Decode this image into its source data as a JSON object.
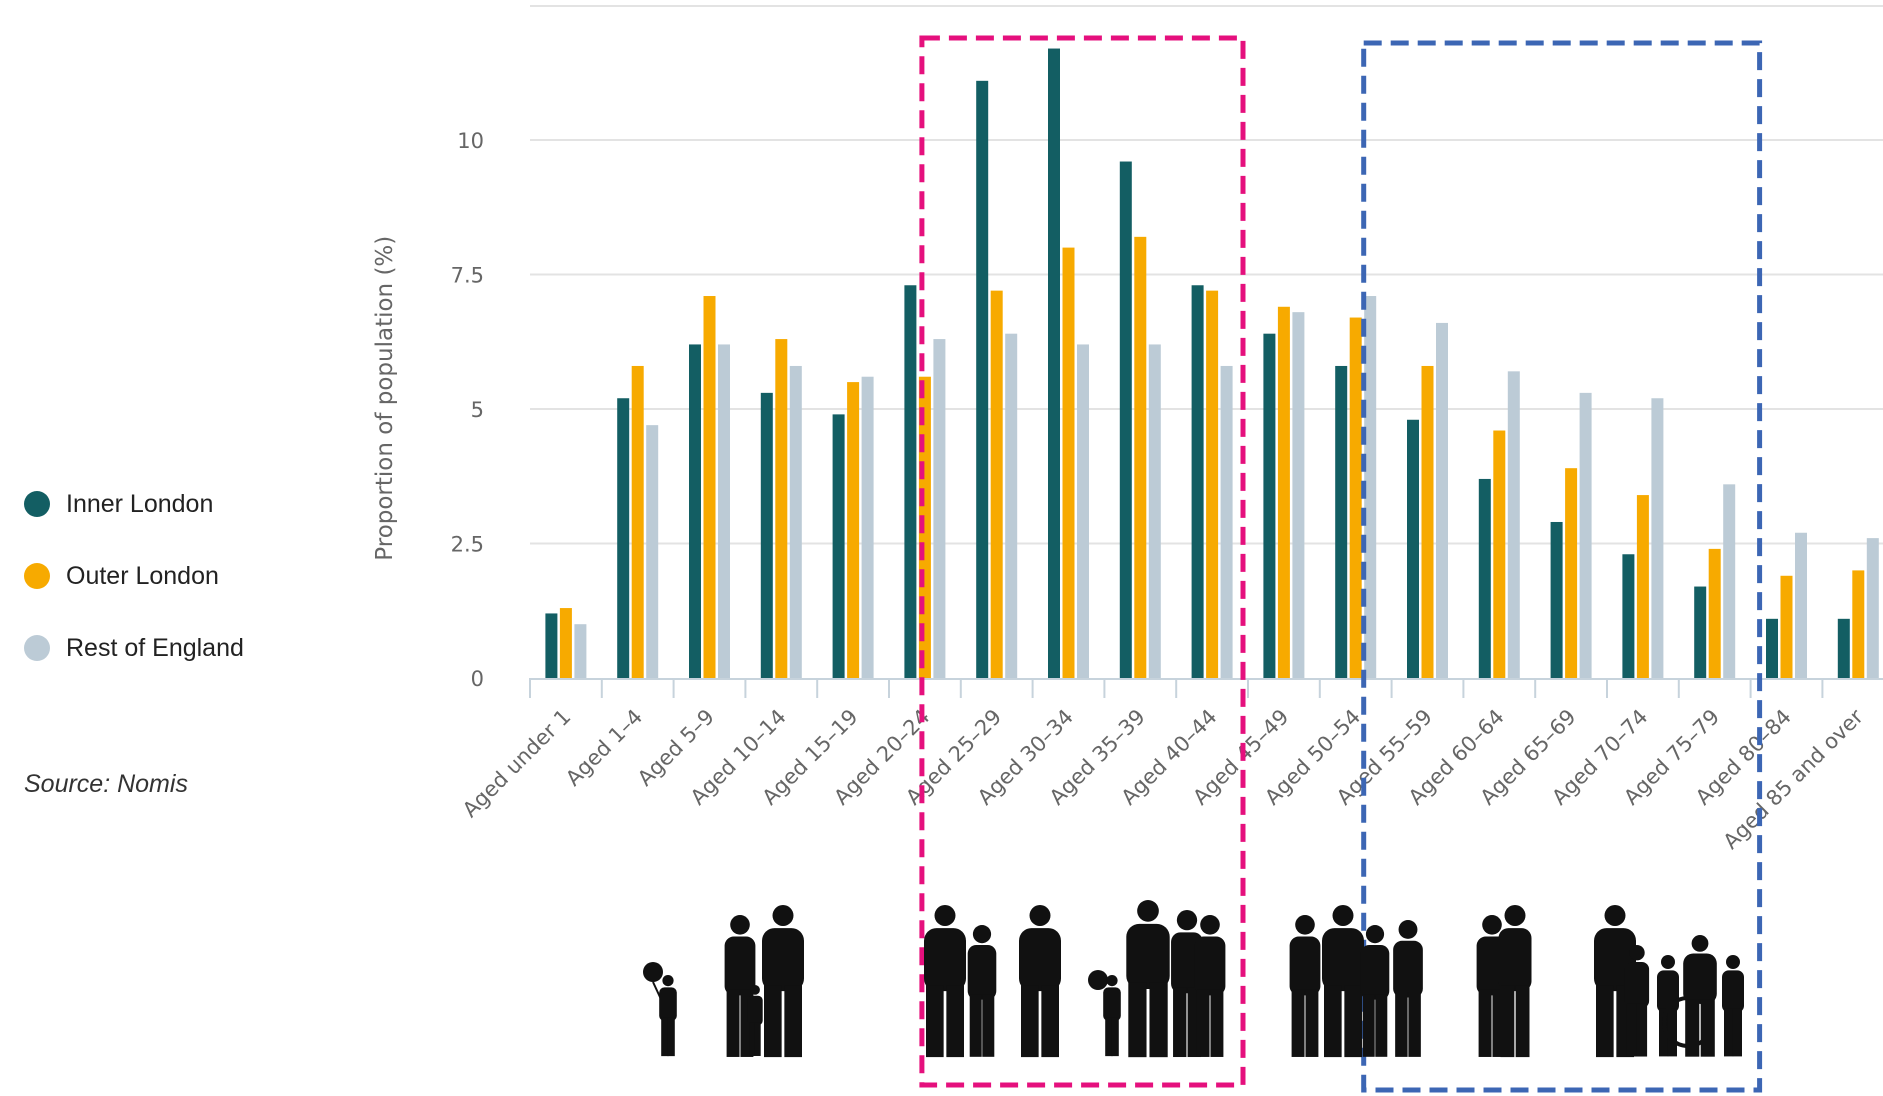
{
  "legend": {
    "items": [
      {
        "label": "Inner London",
        "color": "#135e63"
      },
      {
        "label": "Outer London",
        "color": "#f7aa00"
      },
      {
        "label": "Rest of England",
        "color": "#bccbd6"
      }
    ]
  },
  "source": "Source: Nomis",
  "highlight_colors": {
    "pink": "#e5107d",
    "blue": "#3c66b4"
  },
  "chart_data": {
    "type": "bar",
    "ylabel": "Proportion of population (%)",
    "xlabel": "",
    "ylim": [
      0,
      12.5
    ],
    "yticks": [
      0,
      2.5,
      5,
      7.5,
      10
    ],
    "ytick_labels": [
      "0",
      "2.5",
      "5",
      "7.5",
      "10"
    ],
    "grid": true,
    "legend_position": "left",
    "categories": [
      "Aged under 1",
      "Aged 1–4",
      "Aged 5–9",
      "Aged 10–14",
      "Aged 15–19",
      "Aged 20–24",
      "Aged 25–29",
      "Aged 30–34",
      "Aged 35–39",
      "Aged 40–44",
      "Aged 45–49",
      "Aged 50–54",
      "Aged 55–59",
      "Aged 60–64",
      "Aged 65–69",
      "Aged 70–74",
      "Aged 75–79",
      "Aged 80–84",
      "Aged 85 and over"
    ],
    "series": [
      {
        "name": "Inner London",
        "color": "#135e63",
        "values": [
          1.2,
          5.2,
          6.2,
          5.3,
          4.9,
          7.3,
          11.1,
          11.7,
          9.6,
          7.3,
          6.4,
          5.8,
          4.8,
          3.7,
          2.9,
          2.3,
          1.7,
          1.1,
          1.1
        ]
      },
      {
        "name": "Outer London",
        "color": "#f7aa00",
        "values": [
          1.3,
          5.8,
          7.1,
          6.3,
          5.5,
          5.6,
          7.2,
          8.0,
          8.2,
          7.2,
          6.9,
          6.7,
          5.8,
          4.6,
          3.9,
          3.4,
          2.4,
          1.9,
          2.0
        ]
      },
      {
        "name": "Rest of England",
        "color": "#bccbd6",
        "values": [
          1.0,
          4.7,
          6.2,
          5.8,
          5.6,
          6.3,
          6.4,
          6.2,
          6.2,
          5.8,
          6.8,
          7.1,
          6.6,
          5.7,
          5.3,
          5.2,
          3.6,
          2.7,
          2.6
        ]
      }
    ],
    "highlights": [
      {
        "from": "Aged 20–24",
        "to": "Aged 40–44",
        "style": "dashed",
        "color": "pink"
      },
      {
        "from": "Aged 50–54",
        "to": "Aged 75–79",
        "style": "dashed",
        "color": "blue"
      }
    ]
  }
}
